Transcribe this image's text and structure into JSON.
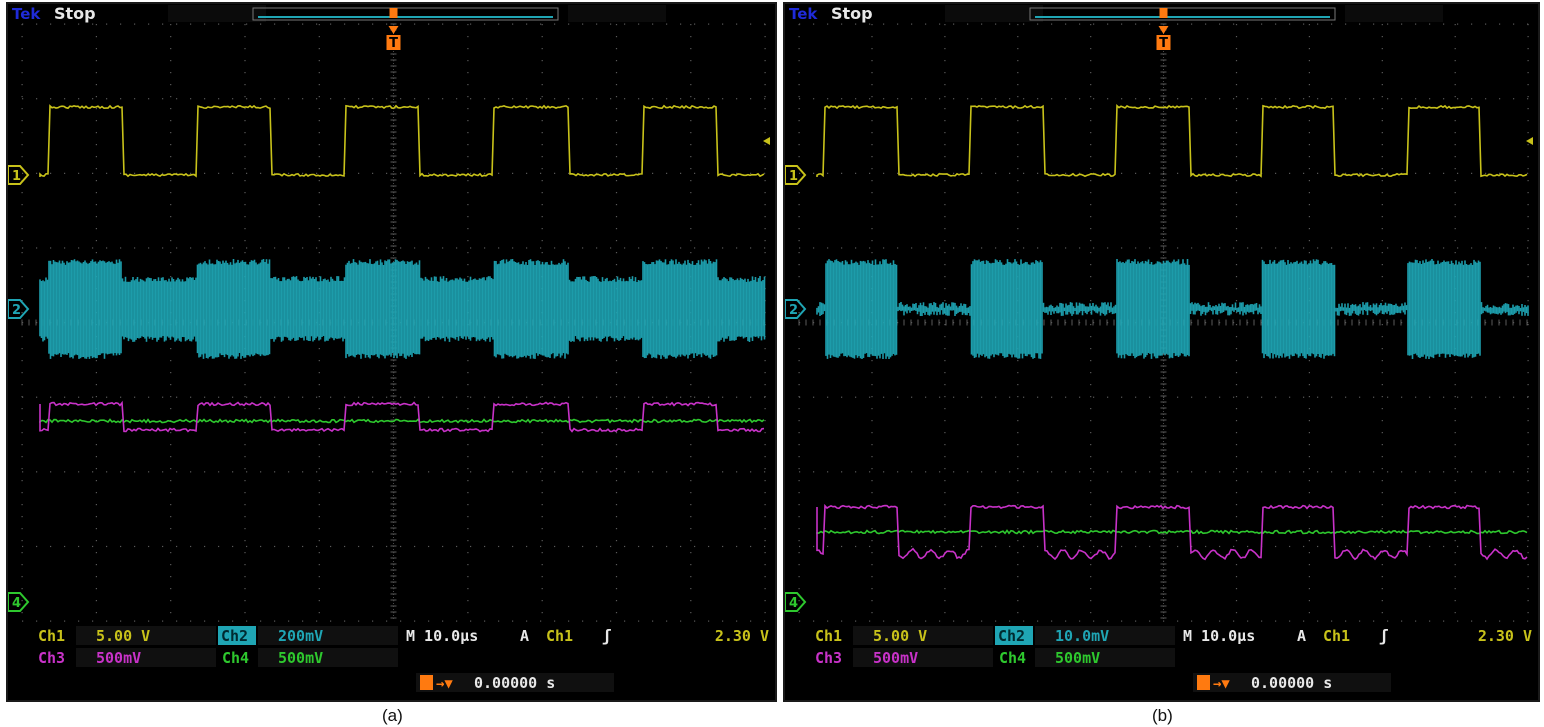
{
  "colors": {
    "ch1": "#c8c21a",
    "ch2": "#1fa5b4",
    "ch3": "#c832c8",
    "ch4": "#2ec82e",
    "trigger": "#ff7a10",
    "graticule": "#5a5a5a"
  },
  "panels": [
    {
      "caption": "(a)",
      "header": {
        "brand": "Tek",
        "status": "Stop"
      },
      "trigger_marker": "T",
      "markers": {
        "ch1": "1",
        "ch2": "2",
        "ch4": "4"
      },
      "readout": {
        "ch1_label": "Ch1",
        "ch1_scale": "5.00 V",
        "ch2_label": "Ch2",
        "ch2_scale": "200mV",
        "timebase": "M 10.0µs",
        "trigger_mode": "A",
        "trigger_source": "Ch1",
        "trigger_slope": "ʃ",
        "trigger_level": "2.30 V",
        "ch3_label": "Ch3",
        "ch3_scale": "500mV",
        "ch4_label": "Ch4",
        "ch4_scale": "500mV",
        "trigger_pos_icon": "T→▼",
        "trigger_pos": "0.00000 s"
      },
      "ch2_off_behavior": "noisy-envelope"
    },
    {
      "caption": "(b)",
      "header": {
        "brand": "Tek",
        "status": "Stop"
      },
      "trigger_marker": "T",
      "markers": {
        "ch1": "1",
        "ch2": "2",
        "ch4": "4"
      },
      "readout": {
        "ch1_label": "Ch1",
        "ch1_scale": "5.00 V",
        "ch2_label": "Ch2",
        "ch2_scale": "10.0mV",
        "timebase": "M 10.0µs",
        "trigger_mode": "A",
        "trigger_source": "Ch1",
        "trigger_slope": "ʃ",
        "trigger_level": "2.30 V",
        "ch3_label": "Ch3",
        "ch3_scale": "500mV",
        "ch4_label": "Ch4",
        "ch4_scale": "500mV",
        "trigger_pos_icon": "T→▼",
        "trigger_pos": "0.00000 s"
      },
      "ch2_off_behavior": "flat"
    }
  ]
}
